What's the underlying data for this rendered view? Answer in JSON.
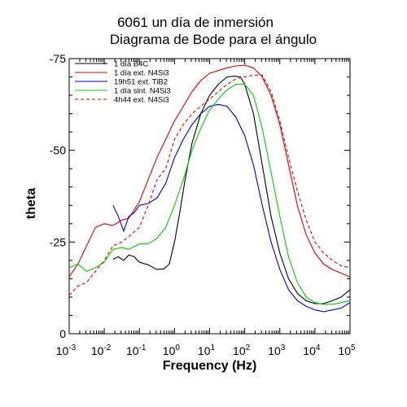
{
  "chart_data": {
    "type": "line",
    "title_line1": "6061 un día de inmersión",
    "title_line2": "Diagrama de Bode para el ángulo",
    "xlabel": "Frequency (Hz)",
    "ylabel": "theta",
    "xscale": "log",
    "xlim": [
      0.001,
      100000
    ],
    "ylim": [
      0,
      -75
    ],
    "yticks": [
      0,
      -25,
      -50,
      -75
    ],
    "yticklabels": [
      "0",
      "-25",
      "-50",
      "-75"
    ],
    "xticks": [
      0.001,
      0.01,
      0.1,
      1,
      10,
      100,
      1000,
      10000,
      100000
    ],
    "xticklabels": [
      {
        "base": "10",
        "exp": "-3"
      },
      {
        "base": "10",
        "exp": "-2"
      },
      {
        "base": "10",
        "exp": "-1"
      },
      {
        "base": "10",
        "exp": "0"
      },
      {
        "base": "10",
        "exp": "1"
      },
      {
        "base": "10",
        "exp": "2"
      },
      {
        "base": "10",
        "exp": "3"
      },
      {
        "base": "10",
        "exp": "4"
      },
      {
        "base": "10",
        "exp": "5"
      }
    ],
    "legend_position": "top-left",
    "series": [
      {
        "name": "1 día B4C",
        "color": "#000000",
        "dash": "solid",
        "points": [
          [
            0.0178,
            -20.3
          ],
          [
            0.025,
            -21
          ],
          [
            0.0355,
            -20
          ],
          [
            0.05,
            -21.5
          ],
          [
            0.0708,
            -21
          ],
          [
            0.1,
            -19.5
          ],
          [
            0.178,
            -18.8
          ],
          [
            0.316,
            -17.5
          ],
          [
            0.5,
            -17.7
          ],
          [
            0.708,
            -19
          ],
          [
            1,
            -25
          ],
          [
            1.41,
            -33
          ],
          [
            2,
            -42
          ],
          [
            3.16,
            -52
          ],
          [
            5.62,
            -60
          ],
          [
            10,
            -65
          ],
          [
            17.8,
            -68
          ],
          [
            31.6,
            -70
          ],
          [
            50,
            -70.2
          ],
          [
            75,
            -70
          ],
          [
            100,
            -68
          ],
          [
            178,
            -60
          ],
          [
            316,
            -46
          ],
          [
            562,
            -32
          ],
          [
            1000,
            -22
          ],
          [
            1780,
            -15
          ],
          [
            3160,
            -11
          ],
          [
            5620,
            -9
          ],
          [
            10000,
            -8.2
          ],
          [
            17800,
            -8.2
          ],
          [
            31600,
            -9
          ],
          [
            56200,
            -10
          ],
          [
            100000,
            -12
          ]
        ]
      },
      {
        "name": "1 día ext. N4Si3",
        "color": "#e00000",
        "dash": "solid",
        "points": [
          [
            0.001,
            -15.5
          ],
          [
            0.00178,
            -19
          ],
          [
            0.00316,
            -24
          ],
          [
            0.00562,
            -29
          ],
          [
            0.01,
            -30
          ],
          [
            0.0178,
            -29.5
          ],
          [
            0.0316,
            -31
          ],
          [
            0.05,
            -31.5
          ],
          [
            0.1,
            -36
          ],
          [
            0.178,
            -42
          ],
          [
            0.316,
            -48
          ],
          [
            0.562,
            -53
          ],
          [
            1,
            -58
          ],
          [
            1.78,
            -62
          ],
          [
            3.16,
            -66
          ],
          [
            5.62,
            -69
          ],
          [
            10,
            -71
          ],
          [
            31.6,
            -72.5
          ],
          [
            56.2,
            -73
          ],
          [
            100,
            -73.2
          ],
          [
            178,
            -72.5
          ],
          [
            316,
            -70
          ],
          [
            562,
            -65
          ],
          [
            1000,
            -57
          ],
          [
            1780,
            -46
          ],
          [
            3160,
            -35
          ],
          [
            5620,
            -27
          ],
          [
            10000,
            -22
          ],
          [
            17800,
            -19
          ],
          [
            31600,
            -17.5
          ],
          [
            56200,
            -16.5
          ],
          [
            100000,
            -15.5
          ]
        ]
      },
      {
        "name": "19h51 ext. TiB2",
        "color": "#0000d0",
        "dash": "solid",
        "points": [
          [
            0.0178,
            -35
          ],
          [
            0.025,
            -32
          ],
          [
            0.0355,
            -28
          ],
          [
            0.05,
            -32
          ],
          [
            0.0708,
            -33
          ],
          [
            0.1,
            -35
          ],
          [
            0.178,
            -35.5
          ],
          [
            0.316,
            -37
          ],
          [
            0.562,
            -41
          ],
          [
            1,
            -48
          ],
          [
            1.78,
            -53
          ],
          [
            3.16,
            -57
          ],
          [
            5.62,
            -60
          ],
          [
            10,
            -62
          ],
          [
            17.8,
            -62.5
          ],
          [
            31.6,
            -62
          ],
          [
            56.2,
            -59
          ],
          [
            100,
            -54
          ],
          [
            178,
            -46
          ],
          [
            316,
            -35
          ],
          [
            562,
            -25
          ],
          [
            1000,
            -17.5
          ],
          [
            1780,
            -12
          ],
          [
            3160,
            -9
          ],
          [
            5620,
            -7.5
          ],
          [
            10000,
            -6.5
          ],
          [
            17800,
            -6
          ],
          [
            31600,
            -6.5
          ],
          [
            56200,
            -7
          ],
          [
            100000,
            -8.5
          ]
        ]
      },
      {
        "name": "1 día sint. N4Si3",
        "color": "#00d000",
        "dash": "solid",
        "points": [
          [
            0.001,
            -18
          ],
          [
            0.00178,
            -19
          ],
          [
            0.00316,
            -17
          ],
          [
            0.00562,
            -18
          ],
          [
            0.01,
            -19.5
          ],
          [
            0.0178,
            -23
          ],
          [
            0.0316,
            -23.5
          ],
          [
            0.05,
            -23
          ],
          [
            0.1,
            -24.5
          ],
          [
            0.178,
            -24.5
          ],
          [
            0.316,
            -26
          ],
          [
            0.562,
            -29
          ],
          [
            1,
            -35
          ],
          [
            1.78,
            -42
          ],
          [
            3.16,
            -50
          ],
          [
            5.62,
            -56
          ],
          [
            10,
            -61
          ],
          [
            17.8,
            -64
          ],
          [
            31.6,
            -66.5
          ],
          [
            56.2,
            -68
          ],
          [
            100,
            -68
          ],
          [
            178,
            -65
          ],
          [
            316,
            -56
          ],
          [
            562,
            -44
          ],
          [
            1000,
            -32
          ],
          [
            1780,
            -21
          ],
          [
            3160,
            -14
          ],
          [
            5620,
            -10
          ],
          [
            10000,
            -8.5
          ],
          [
            17800,
            -8
          ],
          [
            31600,
            -8
          ],
          [
            56200,
            -8.5
          ],
          [
            100000,
            -9
          ]
        ]
      },
      {
        "name": "4h44 ext. N4Si3",
        "color": "#e00000",
        "dash": "dashed",
        "points": [
          [
            0.001,
            -10.5
          ],
          [
            0.00178,
            -13
          ],
          [
            0.00316,
            -14
          ],
          [
            0.00562,
            -17
          ],
          [
            0.01,
            -20
          ],
          [
            0.0178,
            -24
          ],
          [
            0.0316,
            -25
          ],
          [
            0.05,
            -26.5
          ],
          [
            0.1,
            -29
          ],
          [
            0.178,
            -35
          ],
          [
            0.316,
            -42
          ],
          [
            0.562,
            -45
          ],
          [
            1,
            -53
          ],
          [
            1.78,
            -57
          ],
          [
            3.16,
            -60
          ],
          [
            5.62,
            -62
          ],
          [
            10,
            -64
          ],
          [
            17.8,
            -66
          ],
          [
            31.6,
            -68
          ],
          [
            56.2,
            -69.5
          ],
          [
            100,
            -70
          ],
          [
            178,
            -70.5
          ],
          [
            316,
            -70.5
          ],
          [
            562,
            -66
          ],
          [
            1000,
            -58
          ],
          [
            1780,
            -48
          ],
          [
            3160,
            -39
          ],
          [
            5620,
            -31
          ],
          [
            10000,
            -25
          ],
          [
            17800,
            -22
          ],
          [
            31600,
            -20
          ],
          [
            56200,
            -18.5
          ],
          [
            100000,
            -18
          ]
        ]
      }
    ]
  }
}
